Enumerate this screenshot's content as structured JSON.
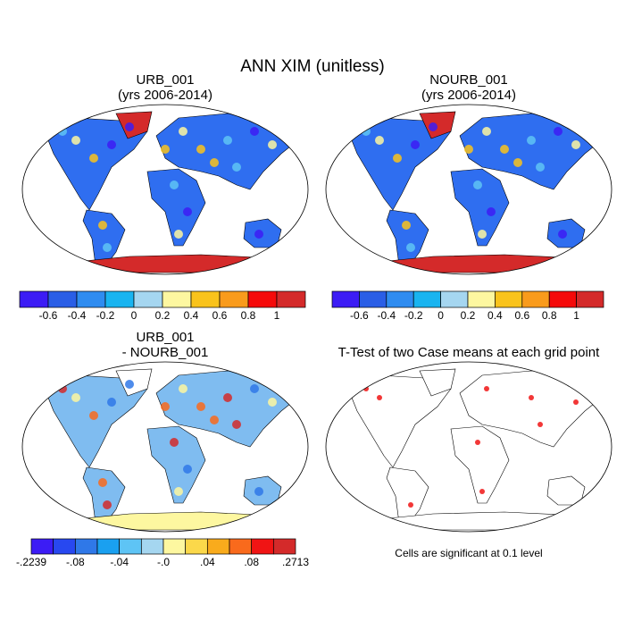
{
  "title": "ANN XIM (unitless)",
  "panels": [
    {
      "title": [
        "URB_001",
        "(yrs 2006-2014)"
      ]
    },
    {
      "title": [
        "NOURB_001",
        "(yrs 2006-2014)"
      ]
    },
    {
      "title": [
        "URB_001",
        "- NOURB_001"
      ]
    },
    {
      "title": [
        "T-Test of two Case means at each grid point"
      ]
    }
  ],
  "colorbars": [
    {
      "colors": [
        "#3c1cf5",
        "#2a5ee6",
        "#2f8cf0",
        "#19b4f0",
        "#a5d6f0",
        "#fdf7a0",
        "#f9c31c",
        "#f99b1c",
        "#f50a0a",
        "#d42a2a"
      ],
      "labels": [
        "-0.6",
        "-0.4",
        "-0.2",
        "0",
        "0.2",
        "0.4",
        "0.6",
        "0.8",
        "1"
      ]
    },
    {
      "colors": [
        "#3c1cf5",
        "#2a5ee6",
        "#2f8cf0",
        "#19b4f0",
        "#a5d6f0",
        "#fdf7a0",
        "#f9c31c",
        "#f99b1c",
        "#f50a0a",
        "#d42a2a"
      ],
      "labels": [
        "-0.6",
        "-0.4",
        "-0.2",
        "0",
        "0.2",
        "0.4",
        "0.6",
        "0.8",
        "1"
      ]
    },
    {
      "colors": [
        "#3c1cf5",
        "#2848f0",
        "#2f78e8",
        "#1aa0f0",
        "#5ec4f5",
        "#a5d6f0",
        "#fdf7a0",
        "#fbd84a",
        "#f9ab1c",
        "#f96a1c",
        "#f01414",
        "#d42a2a"
      ],
      "labels": [
        "-.2239",
        "-.08",
        "-.04",
        "-.0",
        ".04",
        ".08",
        ".2713"
      ]
    }
  ],
  "footnote": "Cells are significant at 0.1 level"
}
